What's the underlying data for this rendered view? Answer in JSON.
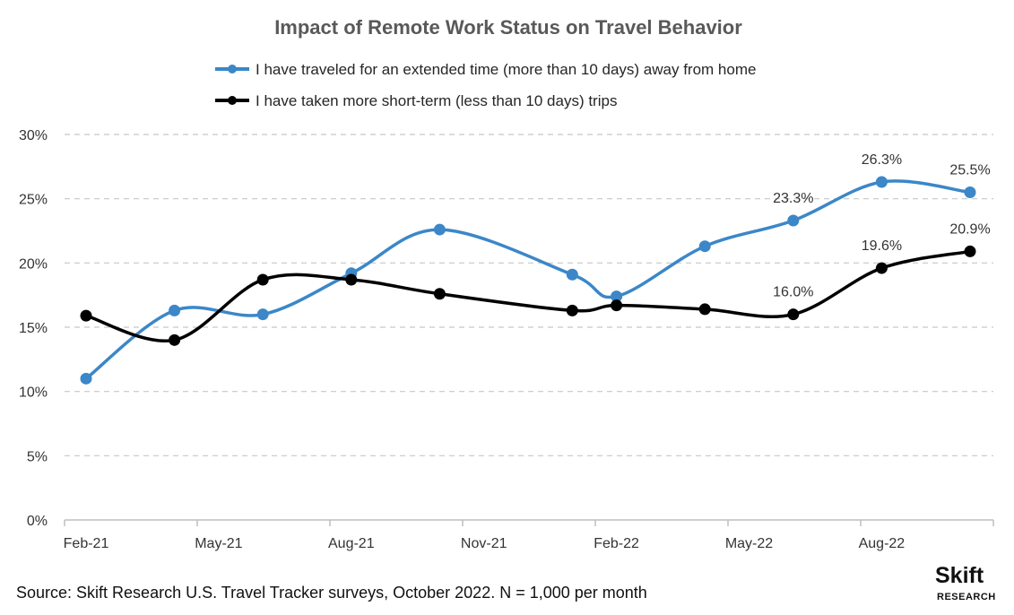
{
  "chart_data": {
    "type": "line",
    "title": "Impact of Remote Work Status on Travel Behavior",
    "x_tick_labels": [
      "Feb-21",
      "May-21",
      "Aug-21",
      "Nov-21",
      "Feb-22",
      "May-22",
      "Aug-22"
    ],
    "y_tick_labels": [
      "0%",
      "5%",
      "10%",
      "15%",
      "20%",
      "25%",
      "30%"
    ],
    "ylim": [
      0,
      30
    ],
    "grid": "horizontal dashed",
    "legend_position": "top",
    "x": [
      "Feb-21",
      "Apr-21",
      "Jun-21",
      "Aug-21",
      "Oct-21",
      "Jan-22",
      "Feb-22",
      "Apr-22",
      "Jun-22",
      "Aug-22",
      "Oct-22"
    ],
    "series": [
      {
        "name": "I have traveled for an extended time (more than 10 days) away from home",
        "color": "#3b87c8",
        "values": [
          11.0,
          16.3,
          16.0,
          19.2,
          22.6,
          19.1,
          17.4,
          21.3,
          23.3,
          26.3,
          25.5
        ],
        "labels": [
          "",
          "",
          "",
          "",
          "",
          "",
          "",
          "",
          "23.3%",
          "26.3%",
          "25.5%"
        ]
      },
      {
        "name": "I have taken more short-term (less than 10 days) trips",
        "color": "#000000",
        "values": [
          15.9,
          14.0,
          18.7,
          18.7,
          17.6,
          16.3,
          16.7,
          16.4,
          16.0,
          19.6,
          20.9
        ],
        "labels": [
          "",
          "",
          "",
          "",
          "",
          "",
          "",
          "",
          "16.0%",
          "19.6%",
          "20.9%"
        ]
      }
    ]
  },
  "source": "Source: Skift Research U.S. Travel Tracker surveys, October 2022. N = 1,000 per month",
  "logo": {
    "line1": "Skift",
    "line2": "RESEARCH"
  }
}
